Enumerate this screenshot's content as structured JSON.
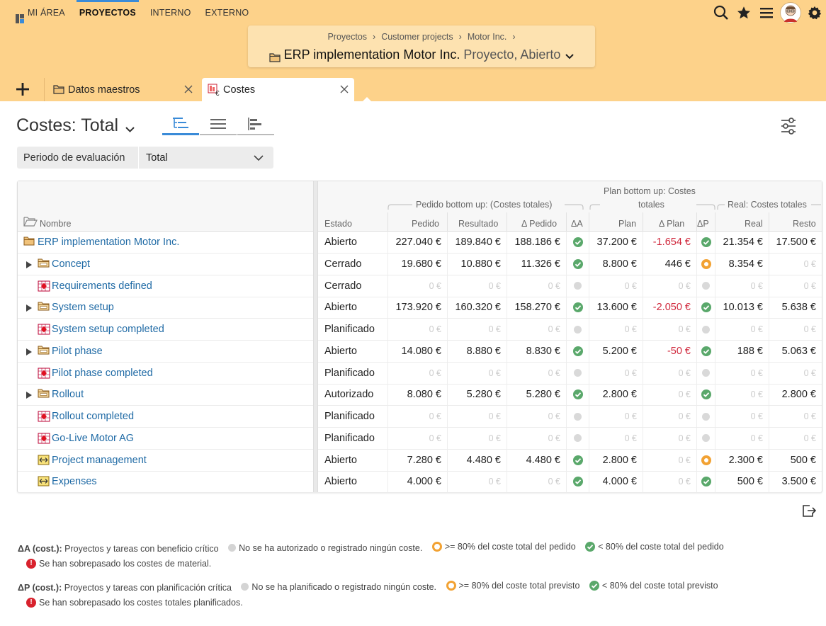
{
  "nav": {
    "items": [
      {
        "label": "MI ÁREA",
        "active": false
      },
      {
        "label": "PROYECTOS",
        "active": true
      },
      {
        "label": "INTERNO",
        "active": false
      },
      {
        "label": "EXTERNO",
        "active": false
      }
    ],
    "icons": [
      "search-icon",
      "star-icon",
      "menu-icon",
      "avatar",
      "gear-icon"
    ]
  },
  "header": {
    "breadcrumbs": [
      "Proyectos",
      "Customer projects",
      "Motor Inc."
    ],
    "separator": "›",
    "project_name": "ERP implementation Motor Inc.",
    "project_sub": "Proyecto, Abierto"
  },
  "tabs": [
    {
      "label": "Datos maestros",
      "icon": "folder-icon",
      "active": false
    },
    {
      "label": "Costes",
      "icon": "costs-icon",
      "active": true
    }
  ],
  "view": {
    "title": "Costes: Total",
    "period_label": "Periodo de evaluación",
    "period_value": "Total"
  },
  "columns": {
    "name": "Nombre",
    "estado": "Estado",
    "group_pedido": "Pedido bottom up: (Costes totales)",
    "group_plan_1": "Plan bottom up: Costes",
    "group_plan_2": "totales",
    "group_real": "Real: Costes totales",
    "pedido": "Pedido",
    "resultado": "Resultado",
    "dpedido": "Δ Pedido",
    "da": "ΔA",
    "plan": "Plan",
    "dplan": "Δ Plan",
    "dp": "ΔP",
    "real": "Real",
    "resto": "Resto"
  },
  "rows": [
    {
      "name": "ERP implementation Motor Inc.",
      "type": "project",
      "level": 0,
      "expand": false,
      "estado": "Abierto",
      "pedido": "227.040 €",
      "resultado": "189.840 €",
      "dpedido": "188.186 €",
      "da": "green",
      "plan": "37.200 €",
      "dplan": "-1.654 €",
      "dp": "green",
      "real": "21.354 €",
      "resto": "17.500 €"
    },
    {
      "name": "Concept",
      "type": "phase",
      "level": 1,
      "expand": true,
      "estado": "Cerrado",
      "pedido": "19.680 €",
      "resultado": "10.880 €",
      "dpedido": "11.326 €",
      "da": "green",
      "plan": "8.800 €",
      "dplan": "446 €",
      "dp": "orange",
      "real": "8.354 €",
      "resto": "0 €"
    },
    {
      "name": "Requirements defined",
      "type": "milestone",
      "level": 1,
      "expand": false,
      "estado": "Cerrado",
      "pedido": "0 €",
      "resultado": "0 €",
      "dpedido": "0 €",
      "da": "grey",
      "plan": "0 €",
      "dplan": "0 €",
      "dp": "grey",
      "real": "0 €",
      "resto": "0 €"
    },
    {
      "name": "System setup",
      "type": "phase",
      "level": 1,
      "expand": true,
      "estado": "Abierto",
      "pedido": "173.920 €",
      "resultado": "160.320 €",
      "dpedido": "158.270 €",
      "da": "green",
      "plan": "13.600 €",
      "dplan": "-2.050 €",
      "dp": "green",
      "real": "10.013 €",
      "resto": "5.638 €"
    },
    {
      "name": "System setup completed",
      "type": "milestone",
      "level": 1,
      "expand": false,
      "estado": "Planificado",
      "pedido": "0 €",
      "resultado": "0 €",
      "dpedido": "0 €",
      "da": "grey",
      "plan": "0 €",
      "dplan": "0 €",
      "dp": "grey",
      "real": "0 €",
      "resto": "0 €"
    },
    {
      "name": "Pilot phase",
      "type": "phase",
      "level": 1,
      "expand": true,
      "estado": "Abierto",
      "pedido": "14.080 €",
      "resultado": "8.880 €",
      "dpedido": "8.830 €",
      "da": "green",
      "plan": "5.200 €",
      "dplan": "-50 €",
      "dp": "green",
      "real": "188 €",
      "resto": "5.063 €"
    },
    {
      "name": "Pilot phase completed",
      "type": "milestone",
      "level": 1,
      "expand": false,
      "estado": "Planificado",
      "pedido": "0 €",
      "resultado": "0 €",
      "dpedido": "0 €",
      "da": "grey",
      "plan": "0 €",
      "dplan": "0 €",
      "dp": "grey",
      "real": "0 €",
      "resto": "0 €"
    },
    {
      "name": "Rollout",
      "type": "phase",
      "level": 1,
      "expand": true,
      "estado": "Autorizado",
      "pedido": "8.080 €",
      "resultado": "5.280 €",
      "dpedido": "5.280 €",
      "da": "green",
      "plan": "2.800 €",
      "dplan": "0 €",
      "dp": "green",
      "real": "0 €",
      "resto": "2.800 €"
    },
    {
      "name": "Rollout completed",
      "type": "milestone",
      "level": 1,
      "expand": false,
      "estado": "Planificado",
      "pedido": "0 €",
      "resultado": "0 €",
      "dpedido": "0 €",
      "da": "grey",
      "plan": "0 €",
      "dplan": "0 €",
      "dp": "grey",
      "real": "0 €",
      "resto": "0 €"
    },
    {
      "name": "Go-Live Motor AG",
      "type": "milestone",
      "level": 1,
      "expand": false,
      "estado": "Planificado",
      "pedido": "0 €",
      "resultado": "0 €",
      "dpedido": "0 €",
      "da": "grey",
      "plan": "0 €",
      "dplan": "0 €",
      "dp": "grey",
      "real": "0 €",
      "resto": "0 €"
    },
    {
      "name": "Project management",
      "type": "task",
      "level": 1,
      "expand": false,
      "estado": "Abierto",
      "pedido": "7.280 €",
      "resultado": "4.480 €",
      "dpedido": "4.480 €",
      "da": "green",
      "plan": "2.800 €",
      "dplan": "0 €",
      "dp": "orange",
      "real": "2.300 €",
      "resto": "500 €"
    },
    {
      "name": "Expenses",
      "type": "task",
      "level": 1,
      "expand": false,
      "estado": "Abierto",
      "pedido": "4.000 €",
      "resultado": "0 €",
      "dpedido": "0 €",
      "da": "green",
      "plan": "4.000 €",
      "dplan": "0 €",
      "dp": "green",
      "real": "500 €",
      "resto": "3.500 €"
    }
  ],
  "legend": {
    "a_title": "ΔA (cost.):",
    "a_desc": "Proyectos y tareas con beneficio crítico",
    "a_grey": "No se ha autorizado o registrado ningún coste.",
    "a_orange": ">= 80% del coste total del pedido",
    "a_green": "< 80% del coste total del pedido",
    "a_red": "Se han sobrepasado los costes de material.",
    "p_title": "ΔP (cost.):",
    "p_desc": "Proyectos y tareas con planificación crítica",
    "p_grey": "No se ha planificado o registrado ningún coste.",
    "p_orange": ">= 80% del coste total previsto",
    "p_green": "< 80% del coste total previsto",
    "p_red": "Se han sobrepasado los costes totales planificados."
  },
  "colors": {
    "accent": "#3a8bd8",
    "header_bg": "#fdd28a",
    "link": "#1f6aa5",
    "negative": "#d0283c",
    "ok": "#5aa86b",
    "warn": "#f2a233",
    "error": "#d8222d"
  }
}
